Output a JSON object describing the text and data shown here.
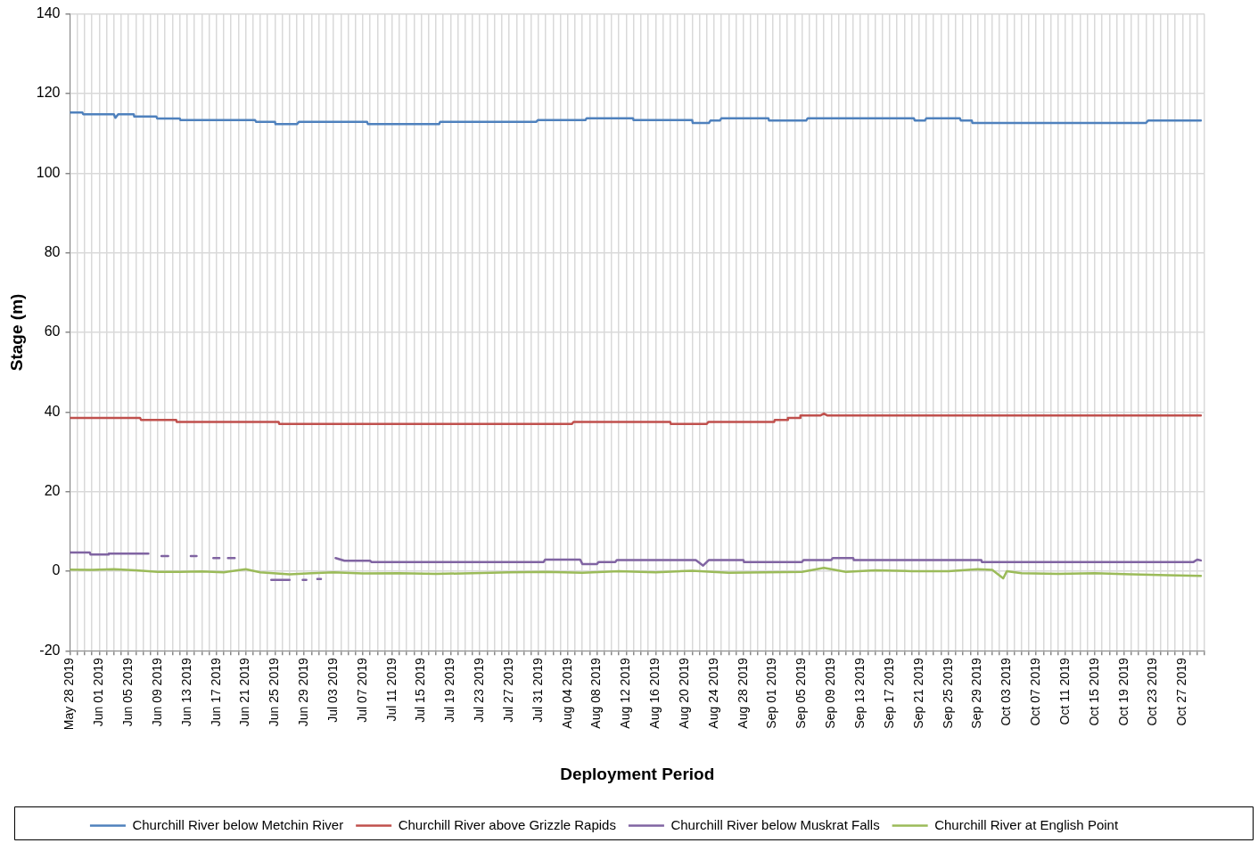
{
  "chart_data": {
    "type": "line",
    "xlabel": "Deployment Period",
    "ylabel": "Stage (m)",
    "xlim": [
      "2019-05-28",
      "2019-10-30"
    ],
    "ylim": [
      -20,
      140
    ],
    "yticks": [
      -20,
      0,
      20,
      40,
      60,
      80,
      100,
      120,
      140
    ],
    "xticks": [
      {
        "value": "2019-05-28",
        "label": "May 28 2019"
      },
      {
        "value": "2019-05-29",
        "label": null
      },
      {
        "value": "2019-05-30",
        "label": null
      },
      {
        "value": "2019-05-31",
        "label": null
      },
      {
        "value": "2019-06-01",
        "label": "Jun 01 2019"
      },
      {
        "value": "2019-06-02",
        "label": null
      },
      {
        "value": "2019-06-03",
        "label": null
      },
      {
        "value": "2019-06-04",
        "label": null
      },
      {
        "value": "2019-06-05",
        "label": "Jun 05 2019"
      },
      {
        "value": "2019-06-06",
        "label": null
      },
      {
        "value": "2019-06-07",
        "label": null
      },
      {
        "value": "2019-06-08",
        "label": null
      },
      {
        "value": "2019-06-09",
        "label": "Jun 09 2019"
      },
      {
        "value": "2019-06-10",
        "label": null
      },
      {
        "value": "2019-06-11",
        "label": null
      },
      {
        "value": "2019-06-12",
        "label": null
      },
      {
        "value": "2019-06-13",
        "label": "Jun 13 2019"
      },
      {
        "value": "2019-06-14",
        "label": null
      },
      {
        "value": "2019-06-15",
        "label": null
      },
      {
        "value": "2019-06-16",
        "label": null
      },
      {
        "value": "2019-06-17",
        "label": "Jun 17 2019"
      },
      {
        "value": "2019-06-18",
        "label": null
      },
      {
        "value": "2019-06-19",
        "label": null
      },
      {
        "value": "2019-06-20",
        "label": null
      },
      {
        "value": "2019-06-21",
        "label": "Jun 21 2019"
      },
      {
        "value": "2019-06-22",
        "label": null
      },
      {
        "value": "2019-06-23",
        "label": null
      },
      {
        "value": "2019-06-24",
        "label": null
      },
      {
        "value": "2019-06-25",
        "label": "Jun 25 2019"
      },
      {
        "value": "2019-06-26",
        "label": null
      },
      {
        "value": "2019-06-27",
        "label": null
      },
      {
        "value": "2019-06-28",
        "label": null
      },
      {
        "value": "2019-06-29",
        "label": "Jun 29 2019"
      },
      {
        "value": "2019-06-30",
        "label": null
      },
      {
        "value": "2019-07-01",
        "label": null
      },
      {
        "value": "2019-07-02",
        "label": null
      },
      {
        "value": "2019-07-03",
        "label": "Jul 03 2019"
      },
      {
        "value": "2019-07-04",
        "label": null
      },
      {
        "value": "2019-07-05",
        "label": null
      },
      {
        "value": "2019-07-06",
        "label": null
      },
      {
        "value": "2019-07-07",
        "label": "Jul 07 2019"
      },
      {
        "value": "2019-07-08",
        "label": null
      },
      {
        "value": "2019-07-09",
        "label": null
      },
      {
        "value": "2019-07-10",
        "label": null
      },
      {
        "value": "2019-07-11",
        "label": "Jul 11 2019"
      },
      {
        "value": "2019-07-12",
        "label": null
      },
      {
        "value": "2019-07-13",
        "label": null
      },
      {
        "value": "2019-07-14",
        "label": null
      },
      {
        "value": "2019-07-15",
        "label": "Jul 15 2019"
      },
      {
        "value": "2019-07-16",
        "label": null
      },
      {
        "value": "2019-07-17",
        "label": null
      },
      {
        "value": "2019-07-18",
        "label": null
      },
      {
        "value": "2019-07-19",
        "label": "Jul 19 2019"
      },
      {
        "value": "2019-07-20",
        "label": null
      },
      {
        "value": "2019-07-21",
        "label": null
      },
      {
        "value": "2019-07-22",
        "label": null
      },
      {
        "value": "2019-07-23",
        "label": "Jul 23 2019"
      },
      {
        "value": "2019-07-24",
        "label": null
      },
      {
        "value": "2019-07-25",
        "label": null
      },
      {
        "value": "2019-07-26",
        "label": null
      },
      {
        "value": "2019-07-27",
        "label": "Jul 27 2019"
      },
      {
        "value": "2019-07-28",
        "label": null
      },
      {
        "value": "2019-07-29",
        "label": null
      },
      {
        "value": "2019-07-30",
        "label": null
      },
      {
        "value": "2019-07-31",
        "label": "Jul 31 2019"
      },
      {
        "value": "2019-08-01",
        "label": null
      },
      {
        "value": "2019-08-02",
        "label": null
      },
      {
        "value": "2019-08-03",
        "label": null
      },
      {
        "value": "2019-08-04",
        "label": "Aug 04 2019"
      },
      {
        "value": "2019-08-05",
        "label": null
      },
      {
        "value": "2019-08-06",
        "label": null
      },
      {
        "value": "2019-08-07",
        "label": null
      },
      {
        "value": "2019-08-08",
        "label": "Aug 08 2019"
      },
      {
        "value": "2019-08-09",
        "label": null
      },
      {
        "value": "2019-08-10",
        "label": null
      },
      {
        "value": "2019-08-11",
        "label": null
      },
      {
        "value": "2019-08-12",
        "label": "Aug 12 2019"
      },
      {
        "value": "2019-08-13",
        "label": null
      },
      {
        "value": "2019-08-14",
        "label": null
      },
      {
        "value": "2019-08-15",
        "label": null
      },
      {
        "value": "2019-08-16",
        "label": "Aug 16 2019"
      },
      {
        "value": "2019-08-17",
        "label": null
      },
      {
        "value": "2019-08-18",
        "label": null
      },
      {
        "value": "2019-08-19",
        "label": null
      },
      {
        "value": "2019-08-20",
        "label": "Aug 20 2019"
      },
      {
        "value": "2019-08-21",
        "label": null
      },
      {
        "value": "2019-08-22",
        "label": null
      },
      {
        "value": "2019-08-23",
        "label": null
      },
      {
        "value": "2019-08-24",
        "label": "Aug 24 2019"
      },
      {
        "value": "2019-08-25",
        "label": null
      },
      {
        "value": "2019-08-26",
        "label": null
      },
      {
        "value": "2019-08-27",
        "label": null
      },
      {
        "value": "2019-08-28",
        "label": "Aug 28 2019"
      },
      {
        "value": "2019-08-29",
        "label": null
      },
      {
        "value": "2019-08-30",
        "label": null
      },
      {
        "value": "2019-08-31",
        "label": null
      },
      {
        "value": "2019-09-01",
        "label": "Sep 01 2019"
      },
      {
        "value": "2019-09-02",
        "label": null
      },
      {
        "value": "2019-09-03",
        "label": null
      },
      {
        "value": "2019-09-04",
        "label": null
      },
      {
        "value": "2019-09-05",
        "label": "Sep 05 2019"
      },
      {
        "value": "2019-09-06",
        "label": null
      },
      {
        "value": "2019-09-07",
        "label": null
      },
      {
        "value": "2019-09-08",
        "label": null
      },
      {
        "value": "2019-09-09",
        "label": "Sep 09 2019"
      },
      {
        "value": "2019-09-10",
        "label": null
      },
      {
        "value": "2019-09-11",
        "label": null
      },
      {
        "value": "2019-09-12",
        "label": null
      },
      {
        "value": "2019-09-13",
        "label": "Sep 13 2019"
      },
      {
        "value": "2019-09-14",
        "label": null
      },
      {
        "value": "2019-09-15",
        "label": null
      },
      {
        "value": "2019-09-16",
        "label": null
      },
      {
        "value": "2019-09-17",
        "label": "Sep 17 2019"
      },
      {
        "value": "2019-09-18",
        "label": null
      },
      {
        "value": "2019-09-19",
        "label": null
      },
      {
        "value": "2019-09-20",
        "label": null
      },
      {
        "value": "2019-09-21",
        "label": "Sep 21 2019"
      },
      {
        "value": "2019-09-22",
        "label": null
      },
      {
        "value": "2019-09-23",
        "label": null
      },
      {
        "value": "2019-09-24",
        "label": null
      },
      {
        "value": "2019-09-25",
        "label": "Sep 25 2019"
      },
      {
        "value": "2019-09-26",
        "label": null
      },
      {
        "value": "2019-09-27",
        "label": null
      },
      {
        "value": "2019-09-28",
        "label": null
      },
      {
        "value": "2019-09-29",
        "label": "Sep 29 2019"
      },
      {
        "value": "2019-09-30",
        "label": null
      },
      {
        "value": "2019-10-01",
        "label": null
      },
      {
        "value": "2019-10-02",
        "label": null
      },
      {
        "value": "2019-10-03",
        "label": "Oct 03 2019"
      },
      {
        "value": "2019-10-04",
        "label": null
      },
      {
        "value": "2019-10-05",
        "label": null
      },
      {
        "value": "2019-10-06",
        "label": null
      },
      {
        "value": "2019-10-07",
        "label": "Oct 07 2019"
      },
      {
        "value": "2019-10-08",
        "label": null
      },
      {
        "value": "2019-10-09",
        "label": null
      },
      {
        "value": "2019-10-10",
        "label": null
      },
      {
        "value": "2019-10-11",
        "label": "Oct 11 2019"
      },
      {
        "value": "2019-10-12",
        "label": null
      },
      {
        "value": "2019-10-13",
        "label": null
      },
      {
        "value": "2019-10-14",
        "label": null
      },
      {
        "value": "2019-10-15",
        "label": "Oct 15 2019"
      },
      {
        "value": "2019-10-16",
        "label": null
      },
      {
        "value": "2019-10-17",
        "label": null
      },
      {
        "value": "2019-10-18",
        "label": null
      },
      {
        "value": "2019-10-19",
        "label": "Oct 19 2019"
      },
      {
        "value": "2019-10-20",
        "label": null
      },
      {
        "value": "2019-10-21",
        "label": null
      },
      {
        "value": "2019-10-22",
        "label": null
      },
      {
        "value": "2019-10-23",
        "label": "Oct 23 2019"
      },
      {
        "value": "2019-10-24",
        "label": null
      },
      {
        "value": "2019-10-25",
        "label": null
      },
      {
        "value": "2019-10-26",
        "label": null
      },
      {
        "value": "2019-10-27",
        "label": "Oct 27 2019"
      },
      {
        "value": "2019-10-28",
        "label": null
      },
      {
        "value": "2019-10-29",
        "label": null
      },
      {
        "value": "2019-10-30",
        "label": null
      }
    ],
    "grid": true,
    "legend": "bottom",
    "marker": "none",
    "series": [
      {
        "name": "Churchill River below Metchin River",
        "color": "#4f81bd",
        "x": [
          "2019-05-28",
          "2019-05-29T17:00",
          "2019-05-29T19:00",
          "2019-06-03",
          "2019-06-03T05:00",
          "2019-06-03T14:00",
          "2019-06-05T17:00",
          "2019-06-05T19:00",
          "2019-06-08T19:00",
          "2019-06-08T22:00",
          "2019-06-12",
          "2019-06-12T02:00",
          "2019-06-22T07:00",
          "2019-06-22T10:00",
          "2019-06-25",
          "2019-06-25T02:00",
          "2019-06-28",
          "2019-06-28T07:00",
          "2019-07-07T14:00",
          "2019-07-07T17:00",
          "2019-07-17T10:00",
          "2019-07-17T14:00",
          "2019-07-30T17:00",
          "2019-07-30T22:00",
          "2019-08-06T10:00",
          "2019-08-06T14:00",
          "2019-08-12T22:00",
          "2019-08-13",
          "2019-08-21",
          "2019-08-21T02:00",
          "2019-08-23T07:00",
          "2019-08-23T12:00",
          "2019-08-24T19:00",
          "2019-08-25",
          "2019-08-31T10:00",
          "2019-08-31T12:00",
          "2019-09-05T14:00",
          "2019-09-05T19:00",
          "2019-09-20T07:00",
          "2019-09-20T10:00",
          "2019-09-21T19:00",
          "2019-09-22",
          "2019-09-26T14:00",
          "2019-09-26T17:00",
          "2019-09-28T05:00",
          "2019-09-28T07:00",
          "2019-10-22",
          "2019-10-22T07:00",
          "2019-10-29T12:00"
        ],
        "values": [
          115.2,
          115.2,
          114.8,
          114.8,
          113.9,
          114.8,
          114.8,
          114.2,
          114.2,
          113.7,
          113.7,
          113.3,
          113.3,
          112.9,
          112.9,
          112.3,
          112.3,
          112.9,
          112.9,
          112.3,
          112.3,
          112.9,
          112.9,
          113.3,
          113.3,
          113.8,
          113.8,
          113.3,
          113.3,
          112.6,
          112.6,
          113.2,
          113.2,
          113.8,
          113.8,
          113.2,
          113.2,
          113.8,
          113.8,
          113.2,
          113.2,
          113.8,
          113.8,
          113.2,
          113.2,
          112.6,
          112.6,
          113.2,
          113.2
        ]
      },
      {
        "name": "Churchill River above Grizzle Rapids",
        "color": "#c0504d",
        "x": [
          "2019-05-28",
          "2019-06-06T14:00",
          "2019-06-06T17:00",
          "2019-06-11T12:00",
          "2019-06-11T14:00",
          "2019-06-25T12:00",
          "2019-06-25T14:00",
          "2019-08-04T14:00",
          "2019-08-04T19:00",
          "2019-08-18",
          "2019-08-18T02:00",
          "2019-08-23",
          "2019-08-23T05:00",
          "2019-09-01T05:00",
          "2019-09-01T07:00",
          "2019-09-03",
          "2019-09-03T02:00",
          "2019-09-04T17:00",
          "2019-09-04T19:00",
          "2019-09-07T12:00",
          "2019-09-08",
          "2019-09-08T12:00",
          "2019-10-29T12:00"
        ],
        "values": [
          38.5,
          38.5,
          38.0,
          38.0,
          37.5,
          37.5,
          37.0,
          37.0,
          37.5,
          37.5,
          37.0,
          37.0,
          37.5,
          37.5,
          38.0,
          38.0,
          38.5,
          38.5,
          39.1,
          39.1,
          39.6,
          39.1,
          39.1
        ]
      },
      {
        "name": "Churchill River below Muskrat Falls",
        "color": "#8064a2",
        "x": [
          "2019-05-28",
          "2019-05-30T17:00",
          "2019-05-30T19:00",
          "2019-06-02T05:00",
          "2019-06-02T07:00",
          "2019-06-07T17:00",
          "2019-06-08",
          "2019-06-09T12:00",
          "2019-06-10T10:00",
          "2019-06-11",
          "2019-06-13T12:00",
          "2019-06-14T07:00",
          "2019-06-15",
          "2019-06-16T14:00",
          "2019-06-17T10:00",
          "2019-06-18",
          "2019-06-18T14:00",
          "2019-06-19T12:00",
          "2019-06-20",
          "2019-06-24T12:00",
          "2019-06-27",
          "2019-06-28",
          "2019-06-28T19:00",
          "2019-06-29T07:00",
          "2019-06-30",
          "2019-06-30T19:00",
          "2019-07-01T07:00",
          "2019-07-02",
          "2019-07-03T07:00",
          "2019-07-04T12:00",
          "2019-07-08",
          "2019-07-08T05:00",
          "2019-07-31T17:00",
          "2019-07-31T22:00",
          "2019-08-05T17:00",
          "2019-08-06",
          "2019-08-08",
          "2019-08-08T05:00",
          "2019-08-10T12:00",
          "2019-08-10T17:00",
          "2019-08-21T12:00",
          "2019-08-22T12:00",
          "2019-08-23T07:00",
          "2019-08-28",
          "2019-08-28T02:00",
          "2019-09-05",
          "2019-09-05T05:00",
          "2019-09-09",
          "2019-09-09T05:00",
          "2019-09-12",
          "2019-09-12T02:00",
          "2019-09-29T12:00",
          "2019-09-29T14:00",
          "2019-10-28T12:00",
          "2019-10-29",
          "2019-10-29T12:00"
        ],
        "values": [
          4.7,
          4.7,
          4.2,
          4.2,
          4.4,
          4.4,
          null,
          3.8,
          3.8,
          null,
          3.8,
          3.8,
          null,
          3.3,
          3.3,
          null,
          3.3,
          3.3,
          null,
          -2.2,
          -2.2,
          null,
          -2.2,
          -2.2,
          null,
          -2.0,
          -2.0,
          null,
          3.3,
          2.6,
          2.6,
          2.3,
          2.3,
          2.9,
          2.9,
          1.8,
          1.8,
          2.3,
          2.3,
          2.8,
          2.8,
          1.4,
          2.8,
          2.8,
          2.3,
          2.3,
          2.8,
          2.8,
          3.3,
          3.3,
          2.8,
          2.8,
          2.3,
          2.3,
          2.9,
          2.7
        ]
      },
      {
        "name": "Churchill River at English Point",
        "color": "#9bbb59",
        "x": [
          "2019-05-28",
          "2019-05-31",
          "2019-06-03",
          "2019-06-06",
          "2019-06-09",
          "2019-06-12",
          "2019-06-15",
          "2019-06-18",
          "2019-06-21",
          "2019-06-23",
          "2019-06-27",
          "2019-06-30",
          "2019-07-03",
          "2019-07-07",
          "2019-07-12",
          "2019-07-17",
          "2019-07-22",
          "2019-07-27",
          "2019-08-01",
          "2019-08-06",
          "2019-08-11",
          "2019-08-16",
          "2019-08-21",
          "2019-08-26",
          "2019-08-31",
          "2019-09-05",
          "2019-09-08",
          "2019-09-11",
          "2019-09-15",
          "2019-09-20",
          "2019-09-25",
          "2019-09-29",
          "2019-10-01",
          "2019-10-02T12:00",
          "2019-10-03",
          "2019-10-05",
          "2019-10-10",
          "2019-10-15",
          "2019-10-20",
          "2019-10-25",
          "2019-10-29T12:00"
        ],
        "values": [
          0.4,
          0.3,
          0.5,
          0.2,
          -0.2,
          -0.2,
          -0.1,
          -0.3,
          0.5,
          -0.3,
          -0.8,
          -0.5,
          -0.3,
          -0.6,
          -0.5,
          -0.7,
          -0.5,
          -0.3,
          -0.2,
          -0.4,
          0,
          -0.3,
          0.1,
          -0.4,
          -0.3,
          -0.2,
          0.8,
          -0.2,
          0.2,
          0,
          0,
          0.5,
          0.3,
          -1.8,
          0,
          -0.5,
          -0.7,
          -0.5,
          -0.8,
          -1.0,
          -1.2
        ]
      }
    ]
  }
}
